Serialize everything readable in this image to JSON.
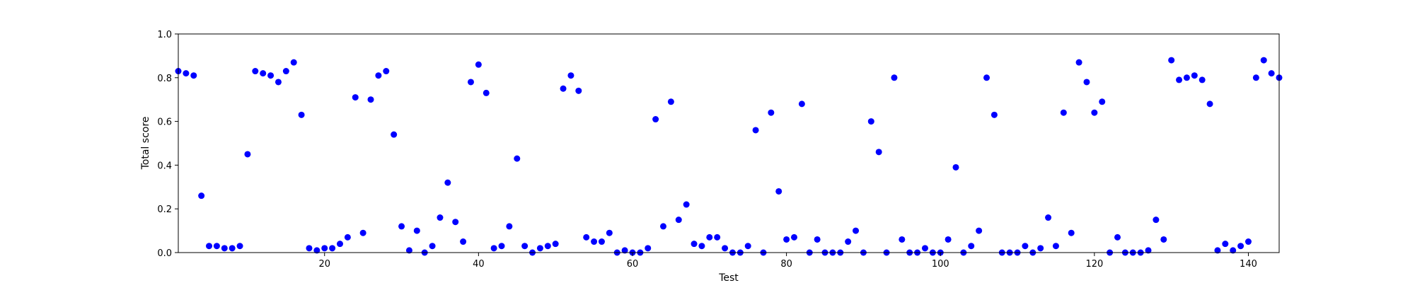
{
  "chart_data": {
    "type": "scatter",
    "title": "",
    "xlabel": "Test",
    "ylabel": "Total score",
    "xlim": [
      1,
      144
    ],
    "ylim": [
      0,
      1
    ],
    "xticks": [
      20,
      40,
      60,
      80,
      100,
      120,
      140
    ],
    "yticks": [
      0.0,
      0.2,
      0.4,
      0.6,
      0.8,
      1.0
    ],
    "ytick_labels": [
      "0.0",
      "0.2",
      "0.4",
      "0.6",
      "0.8",
      "1.0"
    ],
    "grid": false,
    "marker_color": "#0000ff",
    "x": [
      1,
      2,
      3,
      4,
      5,
      6,
      7,
      8,
      9,
      10,
      11,
      12,
      13,
      14,
      15,
      16,
      17,
      18,
      19,
      20,
      21,
      22,
      23,
      24,
      25,
      26,
      27,
      28,
      29,
      30,
      31,
      32,
      33,
      34,
      35,
      36,
      37,
      38,
      39,
      40,
      41,
      42,
      43,
      44,
      45,
      46,
      47,
      48,
      49,
      50,
      51,
      52,
      53,
      54,
      55,
      56,
      57,
      58,
      59,
      60,
      61,
      62,
      63,
      64,
      65,
      66,
      67,
      68,
      69,
      70,
      71,
      72,
      73,
      74,
      75,
      76,
      77,
      78,
      79,
      80,
      81,
      82,
      83,
      84,
      85,
      86,
      87,
      88,
      89,
      90,
      91,
      92,
      93,
      94,
      95,
      96,
      97,
      98,
      99,
      100,
      101,
      102,
      103,
      104,
      105,
      106,
      107,
      108,
      109,
      110,
      111,
      112,
      113,
      114,
      115,
      116,
      117,
      118,
      119,
      120,
      121,
      122,
      123,
      124,
      125,
      126,
      127,
      128,
      129,
      130,
      131,
      132,
      133,
      134,
      135,
      136,
      137,
      138,
      139,
      140,
      141,
      142,
      143,
      144
    ],
    "y": [
      0.83,
      0.82,
      0.81,
      0.26,
      0.03,
      0.03,
      0.02,
      0.02,
      0.03,
      0.45,
      0.83,
      0.82,
      0.81,
      0.78,
      0.83,
      0.87,
      0.63,
      0.02,
      0.01,
      0.02,
      0.02,
      0.04,
      0.07,
      0.71,
      0.09,
      0.7,
      0.81,
      0.83,
      0.54,
      0.12,
      0.01,
      0.1,
      0.0,
      0.03,
      0.16,
      0.32,
      0.14,
      0.05,
      0.78,
      0.86,
      0.73,
      0.02,
      0.03,
      0.12,
      0.43,
      0.03,
      0.0,
      0.02,
      0.03,
      0.04,
      0.75,
      0.81,
      0.74,
      0.07,
      0.05,
      0.05,
      0.09,
      0.0,
      0.01,
      0.0,
      0.0,
      0.02,
      0.61,
      0.12,
      0.69,
      0.15,
      0.22,
      0.04,
      0.03,
      0.07,
      0.07,
      0.02,
      0.0,
      0.0,
      0.03,
      0.56,
      0.0,
      0.64,
      0.28,
      0.06,
      0.07,
      0.68,
      0.0,
      0.06,
      0.0,
      0.0,
      0.0,
      0.05,
      0.1,
      0.0,
      0.6,
      0.46,
      0.0,
      0.8,
      0.06,
      0.0,
      0.0,
      0.02,
      0.0,
      0.0,
      0.06,
      0.39,
      0.0,
      0.03,
      0.1,
      0.8,
      0.63,
      0.0,
      0.0,
      0.0,
      0.03,
      0.0,
      0.02,
      0.16,
      0.03,
      0.64,
      0.09,
      0.87,
      0.78,
      0.64,
      0.69,
      0.0,
      0.07,
      0.0,
      0.0,
      0.0,
      0.01,
      0.15,
      0.06,
      0.88,
      0.79,
      0.8,
      0.81,
      0.79,
      0.68,
      0.01,
      0.04,
      0.01,
      0.03,
      0.05,
      0.8,
      0.88,
      0.82,
      0.8
    ]
  }
}
